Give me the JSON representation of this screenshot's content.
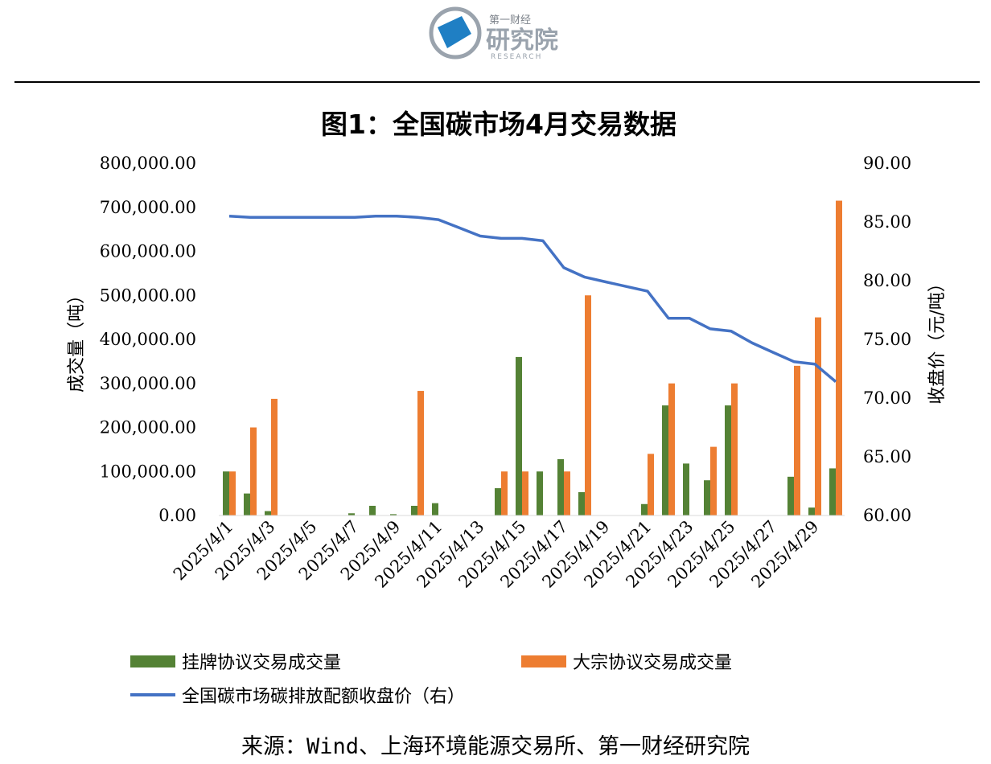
{
  "header": {
    "logo_small": "第一财经",
    "logo_main": "研究院",
    "logo_sub": "RESEARCH"
  },
  "colors": {
    "listed": "#548235",
    "block": "#ED7D31",
    "price": "#4472C4"
  },
  "chart_data": {
    "type": "bar",
    "title": "图1：全国碳市场4月交易数据",
    "ylabel": "成交量（吨）",
    "y2label": "收盘价（元/吨）",
    "ylim": [
      0,
      800000
    ],
    "y2lim": [
      60,
      90
    ],
    "yticks": [
      "0.00",
      "100,000.00",
      "200,000.00",
      "300,000.00",
      "400,000.00",
      "500,000.00",
      "600,000.00",
      "700,000.00",
      "800,000.00"
    ],
    "y2ticks": [
      "60.00",
      "65.00",
      "70.00",
      "75.00",
      "80.00",
      "85.00",
      "90.00"
    ],
    "categories": [
      "2025/4/1",
      "2025/4/2",
      "2025/4/3",
      "2025/4/4",
      "2025/4/5",
      "2025/4/6",
      "2025/4/7",
      "2025/4/8",
      "2025/4/9",
      "2025/4/10",
      "2025/4/11",
      "2025/4/12",
      "2025/4/13",
      "2025/4/14",
      "2025/4/15",
      "2025/4/16",
      "2025/4/17",
      "2025/4/18",
      "2025/4/19",
      "2025/4/20",
      "2025/4/21",
      "2025/4/22",
      "2025/4/23",
      "2025/4/24",
      "2025/4/25",
      "2025/4/26",
      "2025/4/27",
      "2025/4/28",
      "2025/4/29",
      "2025/4/30"
    ],
    "xtick_labels": [
      "2025/4/1",
      "",
      "2025/4/3",
      "",
      "2025/4/5",
      "",
      "2025/4/7",
      "",
      "2025/4/9",
      "",
      "2025/4/11",
      "",
      "2025/4/13",
      "",
      "2025/4/15",
      "",
      "2025/4/17",
      "",
      "2025/4/19",
      "",
      "2025/4/21",
      "",
      "2025/4/23",
      "",
      "2025/4/25",
      "",
      "2025/4/27",
      "",
      "2025/4/29",
      ""
    ],
    "series": [
      {
        "name": "挂牌协议交易成交量",
        "type": "bar",
        "axis": "left",
        "values": [
          100000,
          50000,
          10000,
          null,
          null,
          null,
          5000,
          22000,
          3000,
          22000,
          28000,
          null,
          null,
          62000,
          360000,
          100000,
          128000,
          53000,
          null,
          null,
          26000,
          250000,
          118000,
          80000,
          250000,
          null,
          null,
          88000,
          18000,
          107000
        ]
      },
      {
        "name": "大宗协议交易成交量",
        "type": "bar",
        "axis": "left",
        "values": [
          100000,
          200000,
          265000,
          null,
          null,
          null,
          null,
          null,
          null,
          283000,
          null,
          null,
          null,
          100000,
          100000,
          null,
          100000,
          500000,
          null,
          null,
          140000,
          300000,
          null,
          156000,
          300000,
          null,
          null,
          340000,
          450000,
          715000
        ]
      },
      {
        "name": "全国碳市场碳排放配额收盘价（右）",
        "type": "line",
        "axis": "right",
        "values": [
          85.5,
          85.4,
          85.4,
          85.4,
          85.4,
          85.4,
          85.4,
          85.5,
          85.5,
          85.4,
          85.2,
          84.5,
          83.8,
          83.6,
          83.6,
          83.4,
          81.1,
          80.3,
          79.9,
          79.5,
          79.1,
          76.8,
          76.8,
          75.9,
          75.7,
          74.7,
          73.9,
          73.1,
          72.9,
          71.4
        ]
      }
    ],
    "legend_position": "bottom",
    "grid": false
  },
  "source": "来源：Wind、上海环境能源交易所、第一财经研究院"
}
